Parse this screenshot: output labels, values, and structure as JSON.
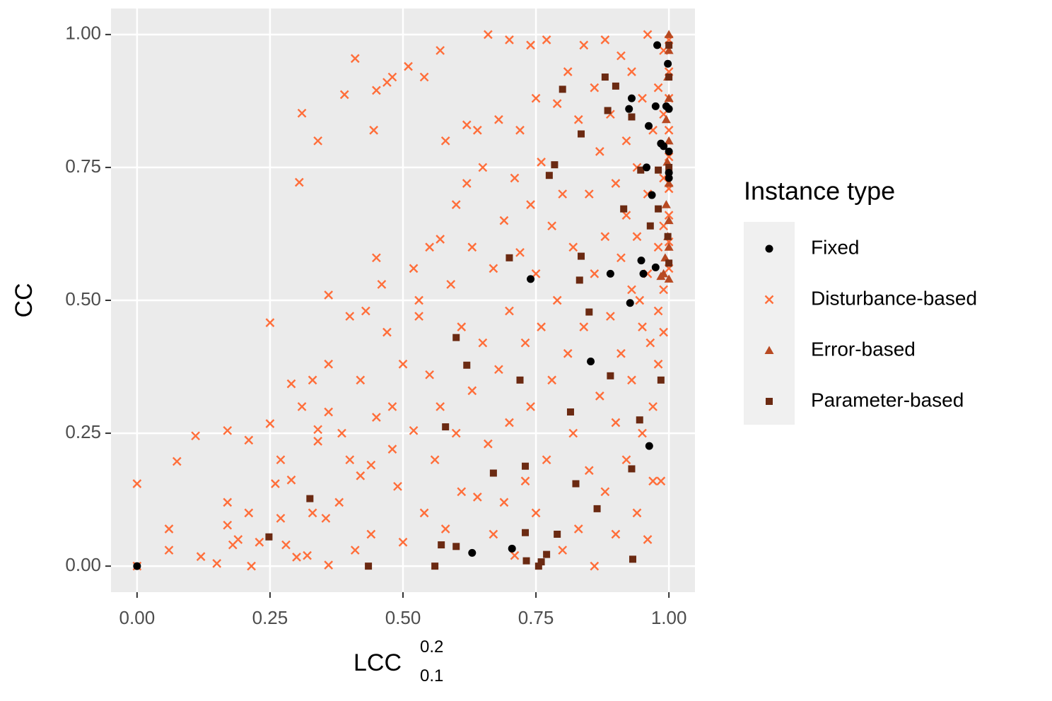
{
  "chart_data": {
    "type": "scatter",
    "x_label": {
      "base": "LCC",
      "sup": "0.2",
      "sub": "0.1"
    },
    "y_label": "CC",
    "legend_title": "Instance type",
    "legend_position": "right",
    "grid": true,
    "xlim": [
      -0.049,
      1.049
    ],
    "ylim": [
      -0.049,
      1.049
    ],
    "xticks": [
      {
        "value": 0,
        "label": "0.00"
      },
      {
        "value": 0.25,
        "label": "0.25"
      },
      {
        "value": 0.5,
        "label": "0.50"
      },
      {
        "value": 0.75,
        "label": "0.75"
      },
      {
        "value": 1,
        "label": "1.00"
      }
    ],
    "yticks": [
      {
        "value": 0,
        "label": "0.00"
      },
      {
        "value": 0.25,
        "label": "0.25"
      },
      {
        "value": 0.5,
        "label": "0.50"
      },
      {
        "value": 0.75,
        "label": "0.75"
      },
      {
        "value": 1,
        "label": "1.00"
      }
    ],
    "series": [
      {
        "name": "Disturbance-based",
        "color": "#ff6e3a",
        "marker": "x",
        "x": [
          0,
          0,
          0.06,
          0.06,
          0.075,
          0.11,
          0.12,
          0.15,
          0.17,
          0.17,
          0.17,
          0.18,
          0.19,
          0.21,
          0.21,
          0.215,
          0.23,
          0.25,
          0.25,
          0.26,
          0.27,
          0.27,
          0.28,
          0.29,
          0.29,
          0.3,
          0.31,
          0.305,
          0.31,
          0.32,
          0.33,
          0.33,
          0.34,
          0.34,
          0.34,
          0.355,
          0.36,
          0.36,
          0.36,
          0.36,
          0.38,
          0.385,
          0.39,
          0.4,
          0.4,
          0.41,
          0.41,
          0.42,
          0.42,
          0.43,
          0.44,
          0.44,
          0.445,
          0.45,
          0.45,
          0.45,
          0.46,
          0.47,
          0.47,
          0.48,
          0.48,
          0.48,
          0.49,
          0.5,
          0.5,
          0.51,
          0.52,
          0.52,
          0.53,
          0.53,
          0.54,
          0.54,
          0.55,
          0.55,
          0.56,
          0.57,
          0.57,
          0.57,
          0.58,
          0.58,
          0.59,
          0.6,
          0.6,
          0.61,
          0.61,
          0.62,
          0.62,
          0.63,
          0.63,
          0.64,
          0.64,
          0.65,
          0.65,
          0.66,
          0.66,
          0.67,
          0.67,
          0.68,
          0.68,
          0.69,
          0.69,
          0.7,
          0.7,
          0.7,
          0.71,
          0.71,
          0.72,
          0.72,
          0.73,
          0.73,
          0.74,
          0.74,
          0.74,
          0.75,
          0.75,
          0.75,
          0.76,
          0.76,
          0.77,
          0.77,
          0.78,
          0.78,
          0.79,
          0.79,
          0.8,
          0.8,
          0.81,
          0.81,
          0.82,
          0.82,
          0.83,
          0.83,
          0.84,
          0.84,
          0.85,
          0.85,
          0.86,
          0.86,
          0.86,
          0.87,
          0.87,
          0.88,
          0.88,
          0.88,
          0.89,
          0.89,
          0.9,
          0.9,
          0.9,
          0.91,
          0.91,
          0.91,
          0.92,
          0.92,
          0.92,
          0.93,
          0.93,
          0.93,
          0.94,
          0.94,
          0.94,
          0.95,
          0.95,
          0.95,
          0.96,
          0.96,
          0.96,
          0.96,
          0.97,
          0.97,
          0.97,
          0.98,
          0.98,
          0.98,
          0.98,
          0.99,
          0.99,
          0.99,
          0.99,
          0.99,
          0.99,
          1,
          1,
          1,
          1,
          1,
          1,
          1,
          1,
          1,
          0.985,
          0.965,
          0.945
        ],
        "y": [
          0.155,
          0,
          0.07,
          0.03,
          0.197,
          0.245,
          0.018,
          0.005,
          0.255,
          0.12,
          0.077,
          0.04,
          0.05,
          0.237,
          0.1,
          0,
          0.045,
          0.268,
          0.458,
          0.155,
          0.09,
          0.2,
          0.04,
          0.343,
          0.162,
          0.017,
          0.852,
          0.722,
          0.3,
          0.02,
          0.1,
          0.35,
          0.8,
          0.257,
          0.235,
          0.09,
          0.38,
          0.29,
          0.002,
          0.51,
          0.12,
          0.25,
          0.887,
          0.47,
          0.2,
          0.955,
          0.03,
          0.35,
          0.17,
          0.48,
          0.19,
          0.06,
          0.82,
          0.895,
          0.28,
          0.58,
          0.53,
          0.91,
          0.44,
          0.92,
          0.3,
          0.22,
          0.15,
          0.38,
          0.045,
          0.94,
          0.56,
          0.255,
          0.5,
          0.47,
          0.92,
          0.1,
          0.6,
          0.36,
          0.2,
          0.97,
          0.615,
          0.3,
          0.8,
          0.07,
          0.53,
          0.68,
          0.25,
          0.45,
          0.14,
          0.72,
          0.83,
          0.6,
          0.33,
          0.82,
          0.13,
          0.75,
          0.42,
          1,
          0.23,
          0.56,
          0.06,
          0.84,
          0.37,
          0.65,
          0.12,
          0.99,
          0.48,
          0.27,
          0.73,
          0.02,
          0.82,
          0.59,
          0.42,
          0.16,
          0.98,
          0.68,
          0.3,
          0.88,
          0.55,
          0.1,
          0.76,
          0.45,
          0.99,
          0.2,
          0.64,
          0.35,
          0.87,
          0.5,
          0.7,
          0.03,
          0.93,
          0.4,
          0.6,
          0.25,
          0.84,
          0.07,
          0.98,
          0.45,
          0.7,
          0.18,
          0.9,
          0.55,
          0,
          0.32,
          0.78,
          0.99,
          0.62,
          0.14,
          0.47,
          0.85,
          0.72,
          0.27,
          0.06,
          0.96,
          0.58,
          0.4,
          0.8,
          0.2,
          0.66,
          0.52,
          0.93,
          0.35,
          0.75,
          0.1,
          0.62,
          0.88,
          0.45,
          0.25,
          1,
          0.7,
          0.05,
          0.55,
          0.82,
          0.3,
          0.16,
          0.9,
          0.48,
          0.6,
          0.38,
          0.97,
          0.85,
          0.73,
          0.64,
          0.52,
          0.44,
          0.99,
          0.93,
          0.88,
          0.82,
          0.77,
          0.71,
          0.66,
          0.61,
          0.56,
          0.16,
          0.42,
          0.5
        ]
      },
      {
        "name": "Error-based",
        "color": "#b84a22",
        "marker": "triangle",
        "x": [
          1,
          1,
          0.998,
          1,
          0.995,
          1,
          0.997,
          1,
          0.995,
          1,
          0.998,
          1,
          0.993,
          0.99,
          1,
          0.985
        ],
        "y": [
          1,
          0.97,
          0.92,
          0.88,
          0.84,
          0.8,
          0.76,
          0.72,
          0.68,
          0.65,
          0.62,
          0.6,
          0.58,
          0.55,
          0.54,
          0.545
        ]
      },
      {
        "name": "Parameter-based",
        "color": "#6b2a12",
        "marker": "square",
        "x": [
          0.248,
          0.325,
          0.435,
          0.56,
          0.572,
          0.6,
          0.6,
          0.62,
          0.58,
          0.67,
          0.7,
          0.72,
          0.73,
          0.73,
          0.732,
          0.755,
          0.76,
          0.77,
          0.785,
          0.775,
          0.79,
          0.8,
          0.815,
          0.825,
          0.832,
          0.835,
          0.835,
          0.865,
          0.85,
          0.88,
          0.885,
          0.89,
          0.9,
          0.915,
          0.93,
          0.93,
          0.932,
          0.945,
          0.947,
          0.985,
          0.965,
          0.98,
          0.98,
          1,
          1,
          1,
          1,
          0.998
        ],
        "y": [
          0.055,
          0.127,
          0,
          0,
          0.04,
          0.037,
          0.43,
          0.378,
          0.262,
          0.175,
          0.58,
          0.35,
          0.188,
          0.063,
          0.01,
          0,
          0.008,
          0.022,
          0.755,
          0.735,
          0.06,
          0.897,
          0.29,
          0.155,
          0.538,
          0.813,
          0.583,
          0.108,
          0.478,
          0.92,
          0.857,
          0.358,
          0.903,
          0.672,
          0.183,
          0.845,
          0.013,
          0.275,
          0.745,
          0.35,
          0.64,
          0.672,
          0.745,
          0.57,
          0.92,
          0.98,
          0.75,
          0.62
        ]
      },
      {
        "name": "Fixed",
        "color": "#000000",
        "marker": "circle",
        "x": [
          0,
          0.63,
          0.705,
          0.74,
          0.853,
          0.89,
          0.925,
          0.93,
          0.927,
          0.948,
          0.952,
          0.958,
          0.962,
          0.963,
          0.968,
          0.975,
          0.975,
          0.978,
          0.985,
          0.99,
          0.995,
          0.998,
          1,
          1,
          1,
          1
        ],
        "y": [
          0,
          0.025,
          0.033,
          0.54,
          0.385,
          0.55,
          0.86,
          0.88,
          0.495,
          0.575,
          0.55,
          0.75,
          0.828,
          0.226,
          0.698,
          0.865,
          0.562,
          0.98,
          0.795,
          0.79,
          0.865,
          0.945,
          0.73,
          0.74,
          0.78,
          0.86
        ]
      }
    ],
    "legend_order": [
      3,
      0,
      1,
      2
    ]
  }
}
